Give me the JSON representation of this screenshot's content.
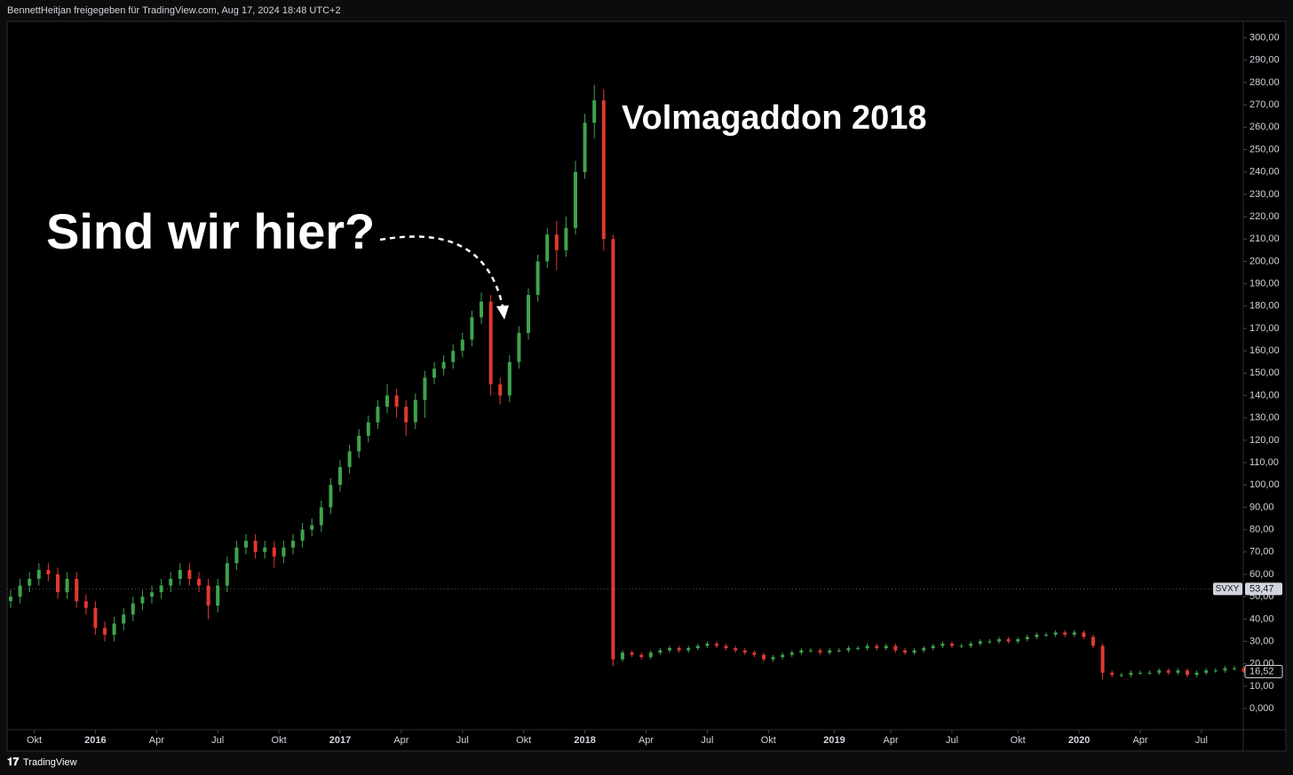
{
  "header": "BennettHeitjan freigegeben für TradingView.com, Aug 17, 2024 18:48 UTC+2",
  "footer": "TradingView",
  "chart_data": {
    "type": "candlestick",
    "annotations": [
      "Sind wir hier?",
      "Volmagaddon 2018"
    ],
    "categories": [
      null,
      null,
      null,
      null,
      null,
      null,
      null,
      null,
      null,
      null,
      null,
      null,
      null,
      null,
      null,
      null,
      null,
      null,
      null,
      null,
      null,
      null,
      null,
      null,
      null,
      null,
      null,
      null,
      null,
      null,
      null,
      null,
      null,
      null,
      null,
      null,
      null,
      null,
      null,
      null,
      null,
      null,
      null,
      null,
      null,
      null,
      null,
      null,
      null,
      null,
      null,
      null,
      null,
      null,
      null,
      null,
      null,
      null,
      null,
      null,
      null,
      null,
      null,
      null,
      null,
      null,
      null,
      null,
      null,
      null,
      null,
      null,
      null,
      null,
      null,
      null,
      null,
      null,
      null,
      null,
      null,
      null,
      null,
      null,
      null,
      null,
      null,
      null,
      null,
      null,
      null,
      null,
      null,
      null,
      null,
      null,
      null,
      null,
      null,
      null,
      null,
      null,
      null,
      null,
      null,
      null,
      null,
      null,
      null,
      null,
      null,
      null,
      null,
      null,
      null,
      null,
      null,
      null,
      null,
      null,
      null,
      null,
      null,
      null,
      null,
      null,
      null,
      null,
      null,
      null,
      null,
      null
    ],
    "series": [
      {
        "name": "SVXY",
        "up_color": "#3fa34d",
        "down_color": "#e2382f",
        "open": [
          48,
          50,
          55,
          58,
          62,
          60,
          52,
          58,
          48,
          45,
          36,
          33,
          38,
          42,
          47,
          50,
          52,
          55,
          58,
          62,
          58,
          55,
          46,
          55,
          65,
          72,
          75,
          70,
          72,
          68,
          72,
          75,
          80,
          82,
          90,
          100,
          108,
          115,
          122,
          128,
          135,
          140,
          135,
          128,
          138,
          148,
          152,
          155,
          160,
          165,
          175,
          182,
          145,
          140,
          155,
          168,
          185,
          200,
          212,
          205,
          215,
          240,
          262,
          272,
          210,
          22,
          25,
          24,
          23,
          25,
          26,
          27,
          26,
          27,
          28,
          29,
          28,
          27,
          26,
          25,
          24,
          22,
          23,
          24,
          25,
          26,
          26,
          25,
          26,
          26,
          27,
          27,
          28,
          27,
          28,
          26,
          25,
          26,
          27,
          28,
          29,
          28,
          28,
          29,
          30,
          30,
          31,
          30,
          31,
          32,
          33,
          33,
          34,
          33,
          34,
          32,
          28,
          16,
          15,
          15,
          16,
          16,
          16,
          17,
          16,
          17,
          15,
          16,
          17,
          17,
          18,
          18
        ],
        "high": [
          53,
          58,
          61,
          65,
          65,
          63,
          61,
          61,
          51,
          48,
          39,
          41,
          45,
          50,
          53,
          55,
          58,
          61,
          65,
          65,
          61,
          58,
          58,
          68,
          75,
          78,
          78,
          75,
          75,
          75,
          78,
          83,
          85,
          93,
          103,
          111,
          118,
          125,
          131,
          138,
          145,
          143,
          138,
          141,
          151,
          155,
          158,
          163,
          168,
          178,
          186,
          185,
          148,
          158,
          171,
          188,
          203,
          215,
          218,
          220,
          245,
          266,
          279,
          277,
          212,
          26,
          26,
          25,
          26,
          27,
          28,
          28,
          28,
          29,
          30,
          30,
          29,
          28,
          27,
          26,
          25,
          24,
          25,
          26,
          27,
          27,
          27,
          27,
          27,
          28,
          28,
          29,
          29,
          29,
          29,
          27,
          27,
          28,
          29,
          30,
          30,
          29,
          30,
          31,
          31,
          32,
          32,
          32,
          33,
          34,
          34,
          35,
          35,
          35,
          35,
          33,
          29,
          17,
          16,
          17,
          17,
          17,
          18,
          18,
          18,
          18,
          17,
          18,
          18,
          19,
          19,
          19
        ],
        "low": [
          45,
          47,
          52,
          55,
          57,
          49,
          49,
          45,
          42,
          33,
          30,
          30,
          35,
          39,
          44,
          47,
          49,
          52,
          55,
          55,
          52,
          40,
          43,
          52,
          62,
          69,
          67,
          67,
          63,
          65,
          69,
          72,
          77,
          79,
          87,
          97,
          105,
          112,
          119,
          125,
          132,
          130,
          122,
          125,
          130,
          145,
          149,
          152,
          157,
          162,
          172,
          140,
          136,
          137,
          152,
          165,
          182,
          197,
          196,
          202,
          212,
          237,
          255,
          205,
          19,
          21,
          23,
          22,
          22,
          24,
          25,
          25,
          25,
          26,
          27,
          27,
          26,
          25,
          24,
          23,
          21,
          21,
          22,
          23,
          24,
          25,
          24,
          24,
          25,
          25,
          26,
          26,
          26,
          26,
          25,
          24,
          24,
          25,
          26,
          27,
          27,
          27,
          27,
          28,
          29,
          29,
          29,
          29,
          30,
          31,
          32,
          32,
          32,
          32,
          31,
          27,
          13,
          14,
          14,
          14,
          15,
          15,
          15,
          15,
          15,
          14,
          14,
          15,
          16,
          16,
          17,
          16
        ],
        "close": [
          50,
          55,
          58,
          62,
          60,
          52,
          58,
          48,
          45,
          36,
          33,
          38,
          42,
          47,
          50,
          52,
          55,
          58,
          62,
          58,
          55,
          46,
          55,
          65,
          72,
          75,
          70,
          72,
          68,
          72,
          75,
          80,
          82,
          90,
          100,
          108,
          115,
          122,
          128,
          135,
          140,
          135,
          128,
          138,
          148,
          152,
          155,
          160,
          165,
          175,
          182,
          145,
          140,
          155,
          168,
          185,
          200,
          212,
          205,
          215,
          240,
          262,
          272,
          210,
          22,
          25,
          24,
          23,
          25,
          26,
          27,
          26,
          27,
          28,
          29,
          28,
          27,
          26,
          25,
          24,
          22,
          23,
          24,
          25,
          26,
          26,
          25,
          26,
          26,
          27,
          27,
          28,
          27,
          28,
          26,
          25,
          26,
          27,
          28,
          29,
          28,
          28,
          29,
          30,
          30,
          31,
          30,
          31,
          32,
          33,
          33,
          34,
          33,
          34,
          32,
          28,
          16,
          15,
          15,
          16,
          16,
          16,
          17,
          16,
          17,
          15,
          16,
          17,
          17,
          18,
          18,
          16.52
        ],
        "last_label": "16,52"
      }
    ],
    "price_lines": [
      {
        "name": "SVXY",
        "value": 53.47,
        "label": "53,47"
      }
    ],
    "xticks": [
      {
        "value": 2.5,
        "label": "Okt"
      },
      {
        "value": 9,
        "label": "2016"
      },
      {
        "value": 15.5,
        "label": "Apr"
      },
      {
        "value": 22,
        "label": "Jul"
      },
      {
        "value": 28.5,
        "label": "Okt"
      },
      {
        "value": 35,
        "label": "2017"
      },
      {
        "value": 41.5,
        "label": "Apr"
      },
      {
        "value": 48,
        "label": "Jul"
      },
      {
        "value": 54.5,
        "label": "Okt"
      },
      {
        "value": 61,
        "label": "2018"
      },
      {
        "value": 67.5,
        "label": "Apr"
      },
      {
        "value": 74,
        "label": "Jul"
      },
      {
        "value": 80.5,
        "label": "Okt"
      },
      {
        "value": 87.5,
        "label": "2019"
      },
      {
        "value": 93.5,
        "label": "Apr"
      },
      {
        "value": 100,
        "label": "Jul"
      },
      {
        "value": 107,
        "label": "Okt"
      },
      {
        "value": 113.5,
        "label": "2020"
      },
      {
        "value": 120,
        "label": "Apr"
      },
      {
        "value": 126.5,
        "label": "Jul"
      }
    ],
    "ylim": [
      -9.5,
      305
    ],
    "yticks": [
      {
        "value": 0,
        "label": "0,000"
      },
      {
        "value": 10,
        "label": "10,00"
      },
      {
        "value": 20,
        "label": "20,00"
      },
      {
        "value": 30,
        "label": "30,00"
      },
      {
        "value": 40,
        "label": "40,00"
      },
      {
        "value": 50,
        "label": "50,00"
      },
      {
        "value": 60,
        "label": "60,00"
      },
      {
        "value": 70,
        "label": "70,00"
      },
      {
        "value": 80,
        "label": "80,00"
      },
      {
        "value": 90,
        "label": "90,00"
      },
      {
        "value": 100,
        "label": "100,00"
      },
      {
        "value": 110,
        "label": "110,00"
      },
      {
        "value": 120,
        "label": "120,00"
      },
      {
        "value": 130,
        "label": "130,00"
      },
      {
        "value": 140,
        "label": "140,00"
      },
      {
        "value": 150,
        "label": "150,00"
      },
      {
        "value": 160,
        "label": "160,00"
      },
      {
        "value": 170,
        "label": "170,00"
      },
      {
        "value": 180,
        "label": "180,00"
      },
      {
        "value": 190,
        "label": "190,00"
      },
      {
        "value": 200,
        "label": "200,00"
      },
      {
        "value": 210,
        "label": "210,00"
      },
      {
        "value": 220,
        "label": "220,00"
      },
      {
        "value": 230,
        "label": "230,00"
      },
      {
        "value": 240,
        "label": "240,00"
      },
      {
        "value": 250,
        "label": "250,00"
      },
      {
        "value": 260,
        "label": "260,00"
      },
      {
        "value": 270,
        "label": "270,00"
      },
      {
        "value": 280,
        "label": "280,00"
      },
      {
        "value": 290,
        "label": "290,00"
      },
      {
        "value": 300,
        "label": "300,00"
      }
    ],
    "grid": false
  }
}
